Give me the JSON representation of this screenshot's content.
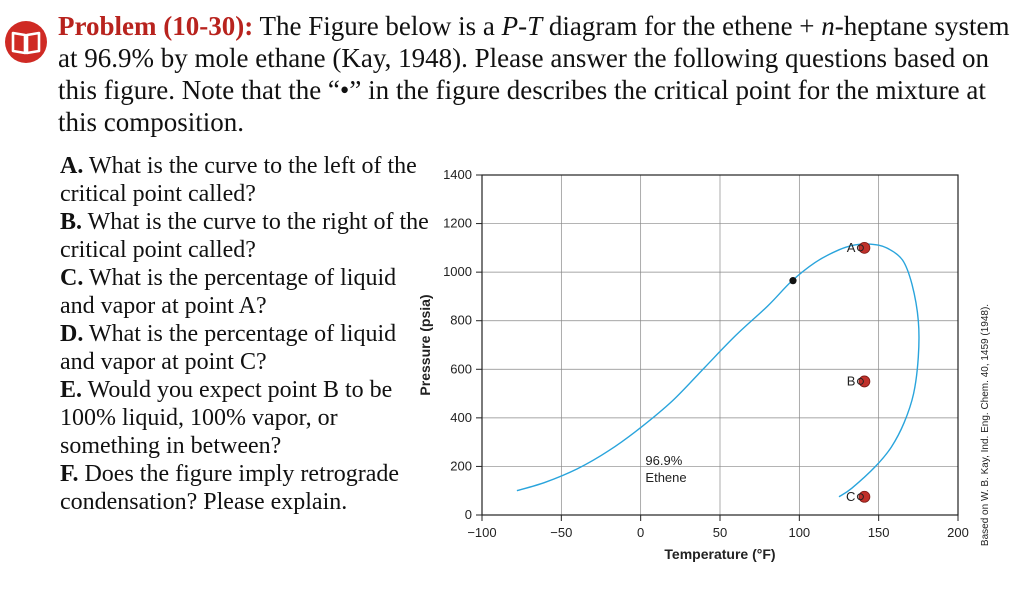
{
  "problem": {
    "header": "Problem (10-30):",
    "text_1": " The Figure below is a ",
    "pt": "P-T",
    "text_2": " diagram for the ethene + ",
    "n": "n",
    "text_3": "-heptane system at 96.9% by mole ethane (Kay, 1948). Please answer the following questions based on this figure. Note that the “•” in the figure describes the critical point for the mixture at this composition."
  },
  "questions": [
    {
      "label": "A.",
      "text": " What is the curve to the left of the critical point called?"
    },
    {
      "label": "B.",
      "text": " What is the curve to the right of the critical point called?"
    },
    {
      "label": "C.",
      "text": " What is the percentage of liquid and vapor at point A?"
    },
    {
      "label": "D.",
      "text": " What is the percentage of liquid and vapor at point C?"
    },
    {
      "label": "E.",
      "text": " Would you expect point B to be 100% liquid, 100% vapor, or something in between?"
    },
    {
      "label": "F.",
      "text": " Does the figure imply retrograde condensation? Please explain."
    }
  ],
  "chart_data": {
    "type": "line",
    "xlabel": "Temperature (°F)",
    "ylabel": "Pressure (psia)",
    "xlim": [
      -100,
      200
    ],
    "ylim": [
      0,
      1400
    ],
    "xticks": [
      -100,
      -50,
      0,
      50,
      100,
      150,
      200
    ],
    "yticks": [
      0,
      200,
      400,
      600,
      800,
      1000,
      1200,
      1400
    ],
    "grid": true,
    "annotation": {
      "line1": "96.9%",
      "line2": "Ethene",
      "x": 3,
      "y": 205
    },
    "credit": "Based on W. B. Kay, Ind. Eng. Chem. 40, 1459 (1948).",
    "phase_envelope": [
      {
        "x": -78,
        "y": 100
      },
      {
        "x": -60,
        "y": 135
      },
      {
        "x": -40,
        "y": 190
      },
      {
        "x": -20,
        "y": 265
      },
      {
        "x": 0,
        "y": 360
      },
      {
        "x": 20,
        "y": 470
      },
      {
        "x": 40,
        "y": 605
      },
      {
        "x": 60,
        "y": 740
      },
      {
        "x": 80,
        "y": 860
      },
      {
        "x": 95,
        "y": 962
      },
      {
        "x": 110,
        "y": 1040
      },
      {
        "x": 125,
        "y": 1092
      },
      {
        "x": 135,
        "y": 1112
      },
      {
        "x": 145,
        "y": 1115
      },
      {
        "x": 155,
        "y": 1100
      },
      {
        "x": 165,
        "y": 1050
      },
      {
        "x": 171,
        "y": 950
      },
      {
        "x": 175,
        "y": 800
      },
      {
        "x": 175,
        "y": 650
      },
      {
        "x": 172,
        "y": 500
      },
      {
        "x": 166,
        "y": 380
      },
      {
        "x": 158,
        "y": 280
      },
      {
        "x": 148,
        "y": 200
      },
      {
        "x": 133,
        "y": 110
      },
      {
        "x": 125,
        "y": 75
      }
    ],
    "critical_point": {
      "x": 96,
      "y": 965
    },
    "points": [
      {
        "label": "A",
        "x": 141,
        "y": 1100
      },
      {
        "label": "B",
        "x": 141,
        "y": 550
      },
      {
        "label": "C",
        "x": 141,
        "y": 75
      }
    ],
    "colors": {
      "curve": "#29a4dc",
      "point": "#c0302a",
      "critical": "#111111",
      "grid": "#888888",
      "header": "#b8231e"
    }
  }
}
